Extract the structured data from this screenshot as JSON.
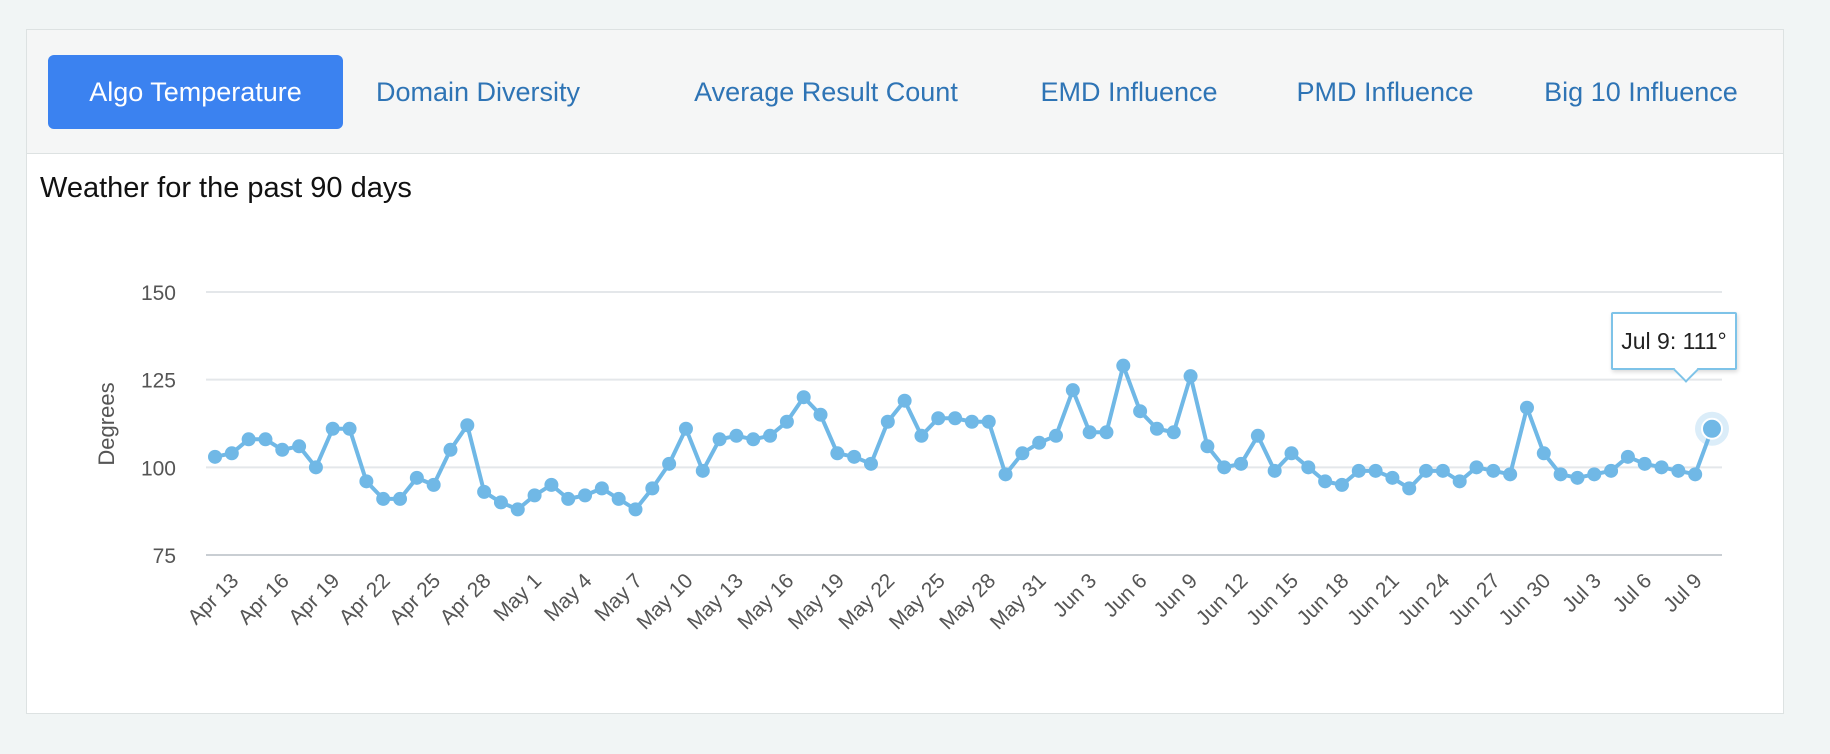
{
  "tabs": [
    {
      "label": "Algo Temperature",
      "active": true
    },
    {
      "label": "Domain Diversity",
      "active": false
    },
    {
      "label": "Average Result Count",
      "active": false
    },
    {
      "label": "EMD Influence",
      "active": false
    },
    {
      "label": "PMD Influence",
      "active": false
    },
    {
      "label": "Big 10 Influence",
      "active": false
    }
  ],
  "colors": {
    "line": "#70b8e6",
    "accent": "#3b82f0",
    "tab_text": "#2e74b5"
  },
  "tooltip": {
    "text": "Jul 9: 111°"
  },
  "chart_data": {
    "type": "line",
    "title": "Weather for the past 90 days",
    "ylabel": "Degrees",
    "xlabel": "",
    "ylim": [
      75,
      150
    ],
    "yticks": [
      75,
      100,
      125,
      150
    ],
    "x_tick_labels": [
      "Apr 13",
      "Apr 16",
      "Apr 19",
      "Apr 22",
      "Apr 25",
      "Apr 28",
      "May 1",
      "May 4",
      "May 7",
      "May 10",
      "May 13",
      "May 16",
      "May 19",
      "May 22",
      "May 25",
      "May 28",
      "May 31",
      "Jun 3",
      "Jun 6",
      "Jun 9",
      "Jun 12",
      "Jun 15",
      "Jun 18",
      "Jun 21",
      "Jun 24",
      "Jun 27",
      "Jun 30",
      "Jul 3",
      "Jul 6",
      "Jul 9"
    ],
    "series": [
      {
        "name": "Algo Temperature",
        "values": [
          103,
          104,
          108,
          108,
          105,
          106,
          100,
          111,
          111,
          96,
          91,
          91,
          97,
          95,
          105,
          112,
          93,
          90,
          88,
          92,
          95,
          91,
          92,
          94,
          91,
          88,
          94,
          101,
          111,
          99,
          108,
          109,
          108,
          109,
          113,
          120,
          115,
          104,
          103,
          101,
          113,
          119,
          109,
          114,
          114,
          113,
          113,
          98,
          104,
          107,
          109,
          122,
          110,
          110,
          129,
          116,
          111,
          110,
          126,
          106,
          100,
          101,
          109,
          99,
          104,
          100,
          96,
          95,
          99,
          99,
          97,
          94,
          99,
          99,
          96,
          100,
          99,
          98,
          117,
          104,
          98,
          97,
          98,
          99,
          103,
          101,
          100,
          99,
          98,
          111
        ]
      }
    ],
    "highlight": {
      "label": "Jul 9",
      "value": 111
    }
  }
}
